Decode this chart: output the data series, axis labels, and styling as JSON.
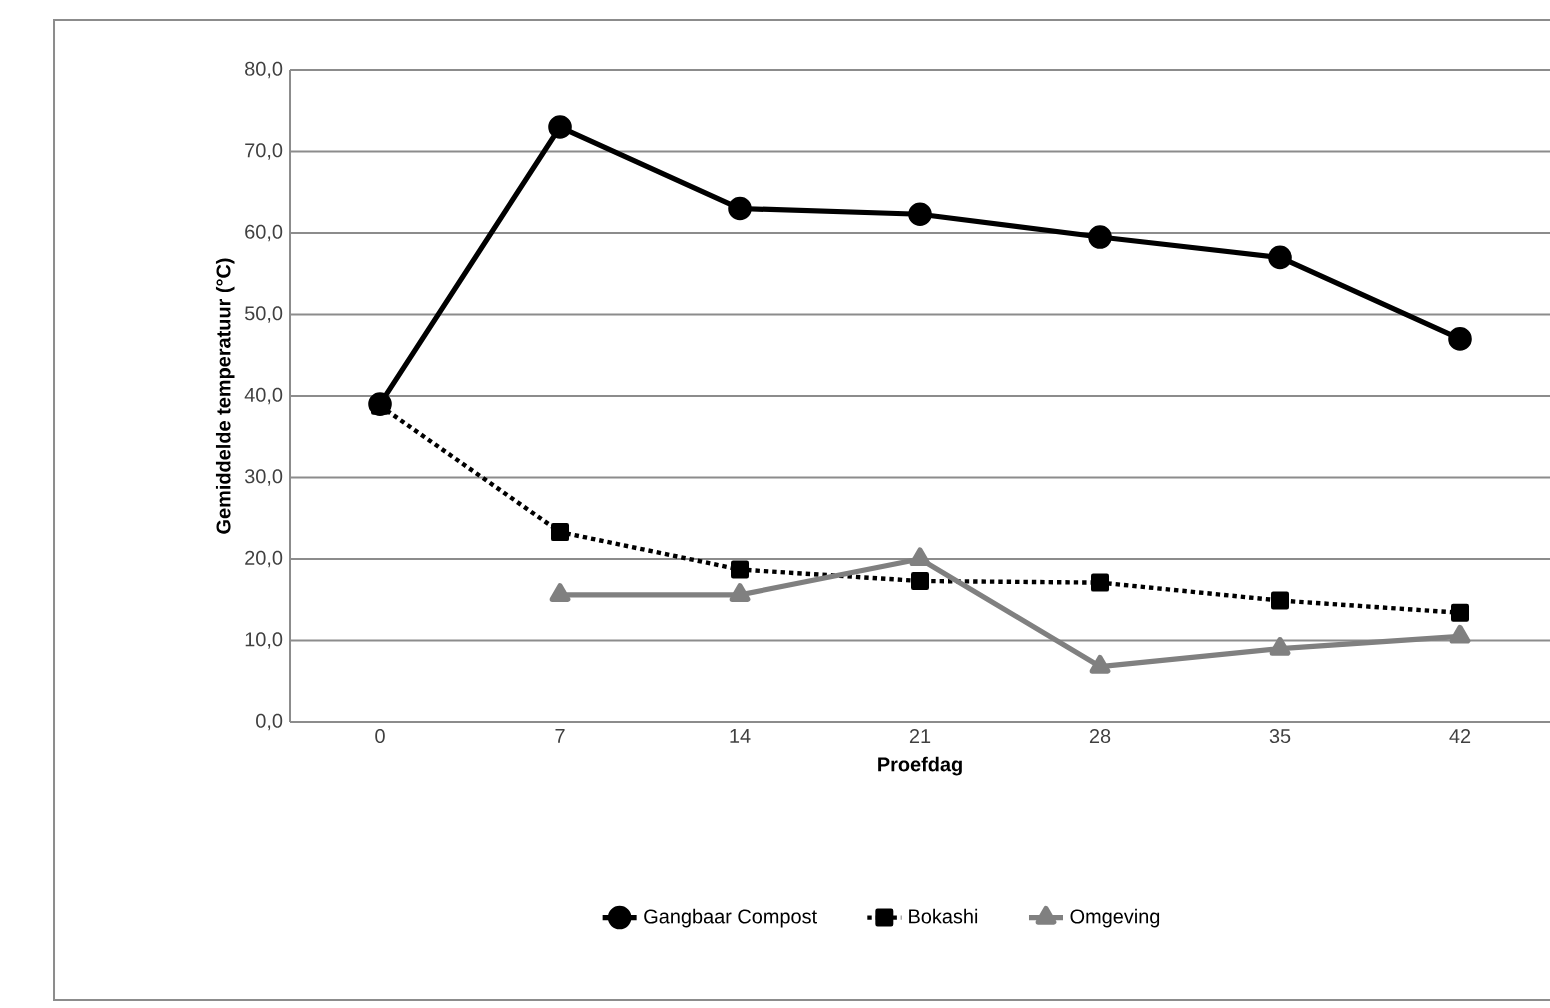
{
  "chart_data": {
    "type": "line",
    "xlabel": "Proefdag",
    "ylabel": "Gemiddelde temperatuur (°C)",
    "categories": [
      "0",
      "7",
      "14",
      "21",
      "28",
      "35",
      "42"
    ],
    "series": [
      {
        "name": "Gangbaar Compost",
        "color": "#000000",
        "marker": "circle",
        "line_style": "solid",
        "values": [
          39.0,
          73.0,
          63.0,
          62.3,
          59.5,
          57.0,
          47.0
        ]
      },
      {
        "name": "Bokashi",
        "color": "#000000",
        "marker": "square",
        "line_style": "dotted",
        "values": [
          38.8,
          23.3,
          18.7,
          17.3,
          17.1,
          14.9,
          13.4
        ]
      },
      {
        "name": "Omgeving",
        "color": "#808080",
        "marker": "triangle",
        "line_style": "solid",
        "values": [
          null,
          15.6,
          15.6,
          20.0,
          6.8,
          9.0,
          10.5
        ]
      }
    ],
    "ylim": [
      0,
      80
    ],
    "yticks": [
      {
        "value": 0,
        "label": "0,0"
      },
      {
        "value": 10,
        "label": "10,0"
      },
      {
        "value": 20,
        "label": "20,0"
      },
      {
        "value": 30,
        "label": "30,0"
      },
      {
        "value": 40,
        "label": "40,0"
      },
      {
        "value": 50,
        "label": "50,0"
      },
      {
        "value": 60,
        "label": "60,0"
      },
      {
        "value": 70,
        "label": "70,0"
      },
      {
        "value": 80,
        "label": "80,0"
      }
    ],
    "grid": "y",
    "legend": "bottom"
  }
}
